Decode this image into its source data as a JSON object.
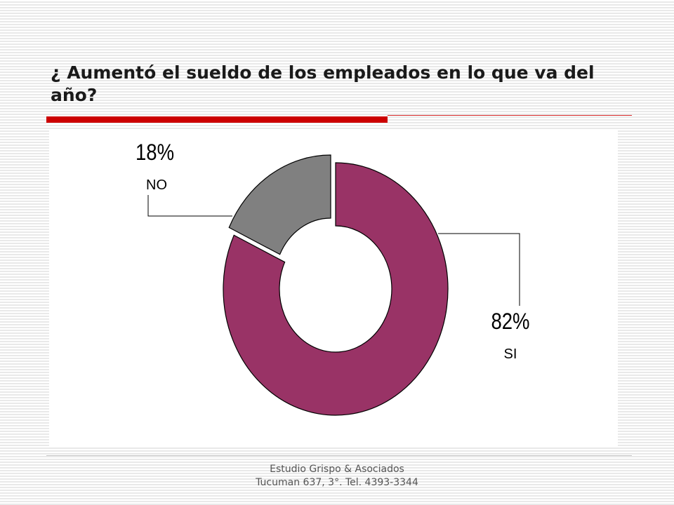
{
  "slide": {
    "title": "¿ Aumentó el sueldo de los empleados en lo que va del año?"
  },
  "chart_data": {
    "type": "pie",
    "variant": "donut",
    "title": "",
    "slices": [
      {
        "label": "SI",
        "value": 82,
        "value_label": "82%",
        "color": "#993366"
      },
      {
        "label": "NO",
        "value": 18,
        "value_label": "18%",
        "color": "#808080",
        "exploded": true
      }
    ],
    "legend": "none",
    "data_labels": "outside-with-leader-lines"
  },
  "footer": {
    "line1": "Estudio Grispo & Asociados",
    "line2": "Tucuman 637, 3°. Tel. 4393-3344"
  }
}
